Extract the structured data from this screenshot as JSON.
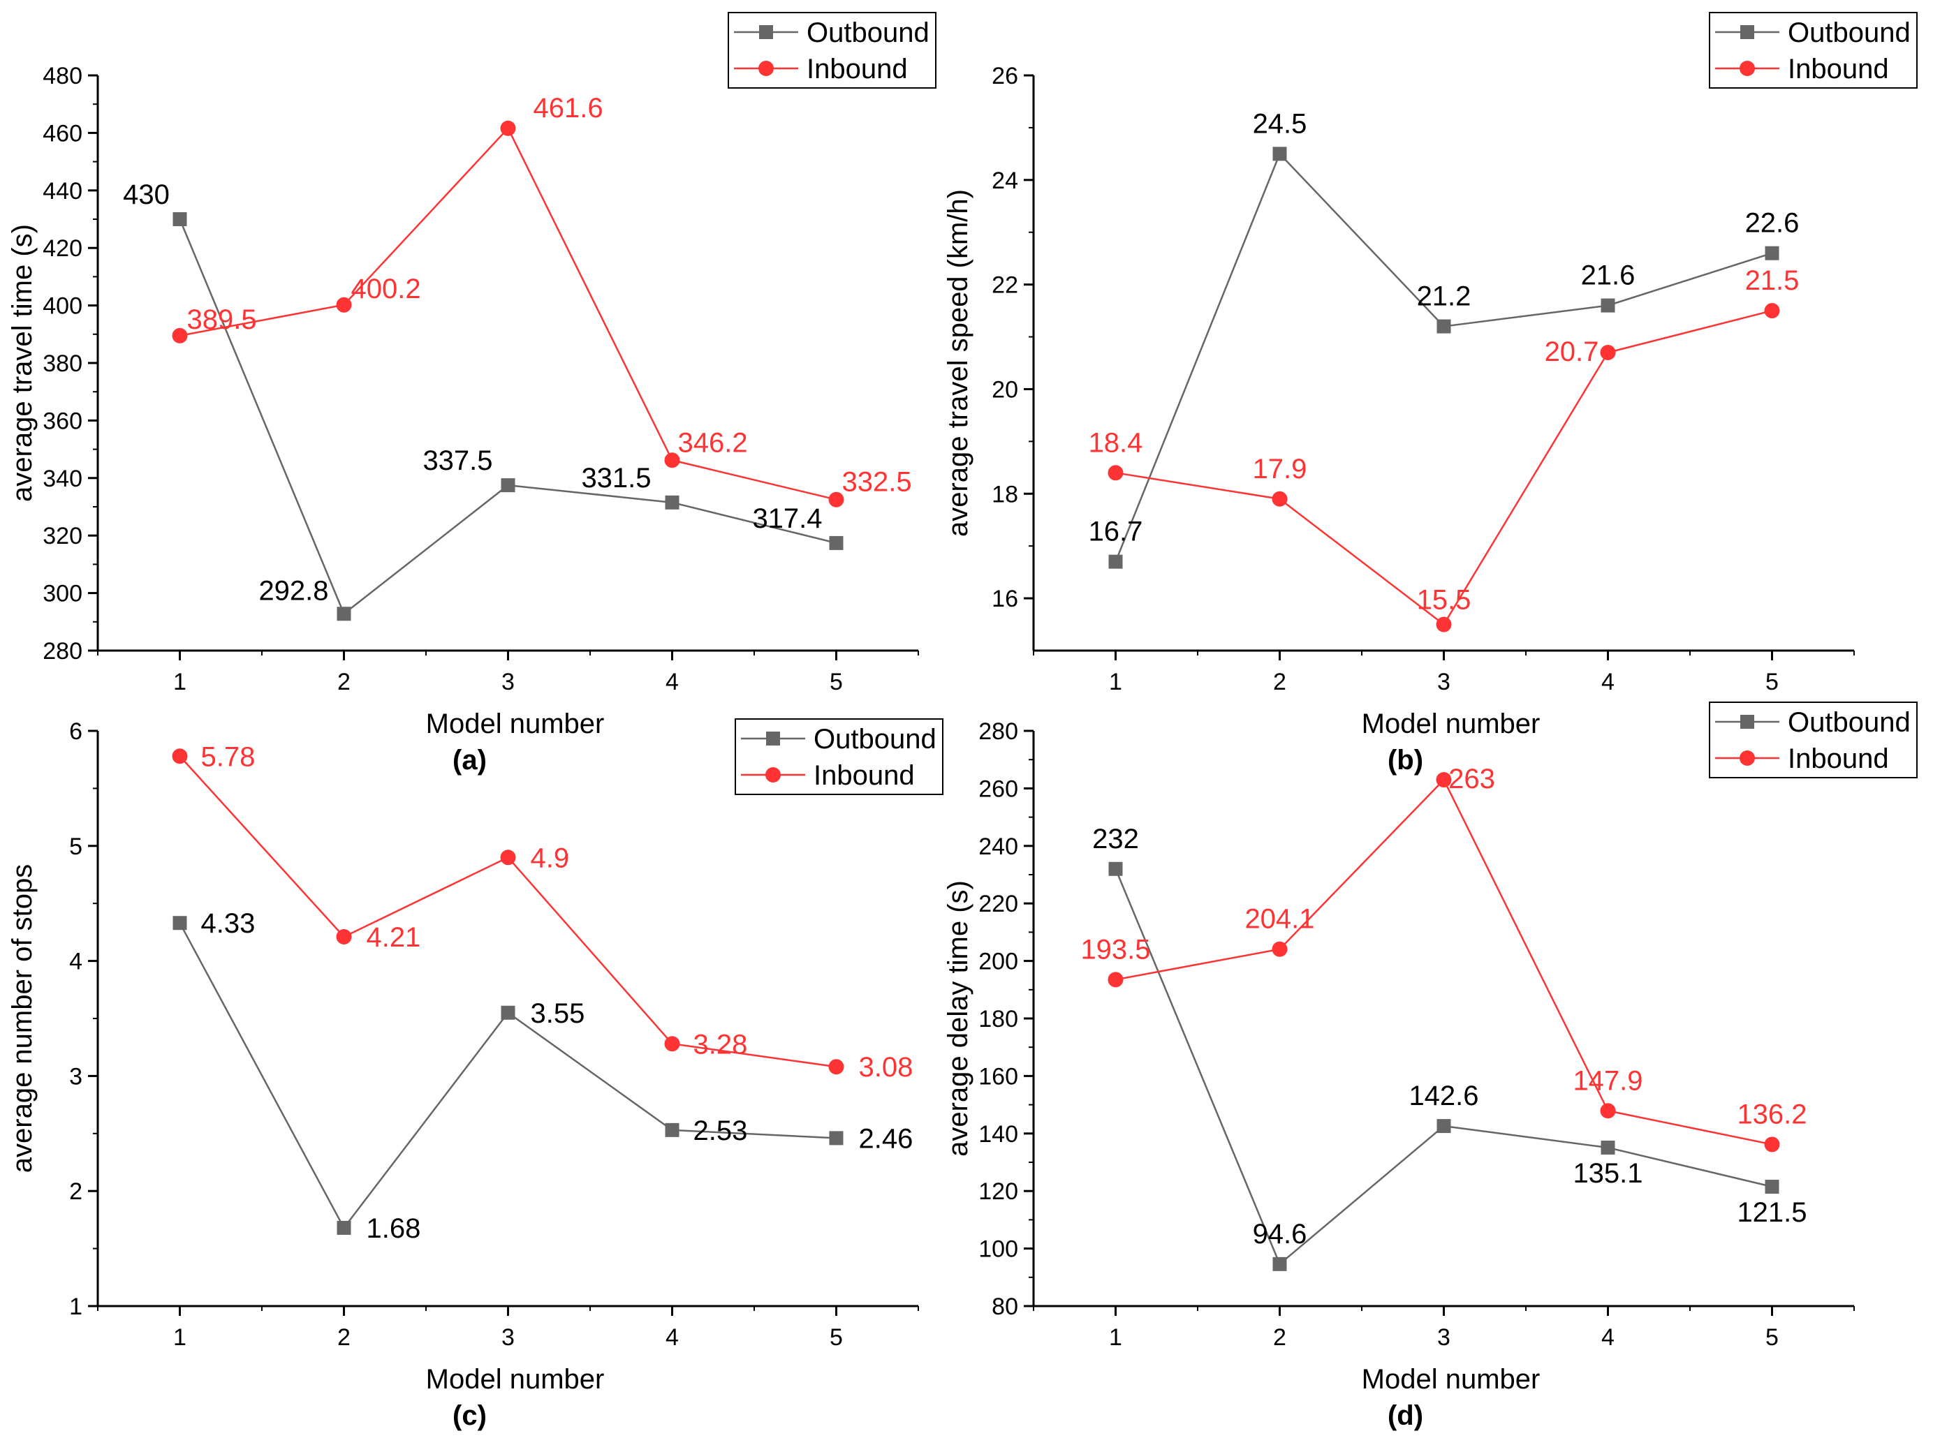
{
  "legend": {
    "outbound_label": "Outbound",
    "inbound_label": "Inbound"
  },
  "colors": {
    "outbound": "#666666",
    "inbound": "#ff3333",
    "outbound_label": "#000000",
    "inbound_label": "#ff3333"
  },
  "chart_data": [
    {
      "type": "line",
      "panel": "(a)",
      "xlabel": "Model number",
      "ylabel": "average travel time (s)",
      "x": [
        1,
        2,
        3,
        4,
        5
      ],
      "xticks": [
        "1",
        "2",
        "3",
        "4",
        "5"
      ],
      "xlim": [
        0.5,
        5.5
      ],
      "ylim": [
        280,
        480
      ],
      "yticks": [
        "280",
        "300",
        "320",
        "340",
        "360",
        "380",
        "400",
        "420",
        "440",
        "460",
        "480"
      ],
      "legend_position": "top-right",
      "series": [
        {
          "name": "Outbound",
          "marker": "square",
          "values": [
            430,
            292.8,
            337.5,
            331.5,
            317.4
          ],
          "labels": [
            "430",
            "292.8",
            "337.5",
            "331.5",
            "317.4"
          ]
        },
        {
          "name": "Inbound",
          "marker": "circle",
          "values": [
            389.5,
            400.2,
            461.6,
            346.2,
            332.5
          ],
          "labels": [
            "389.5",
            "400.2",
            "461.6",
            "346.2",
            "332.5"
          ]
        }
      ]
    },
    {
      "type": "line",
      "panel": "(b)",
      "xlabel": "Model number",
      "ylabel": "average travel speed (km/h)",
      "x": [
        1,
        2,
        3,
        4,
        5
      ],
      "xticks": [
        "1",
        "2",
        "3",
        "4",
        "5"
      ],
      "xlim": [
        0.5,
        5.5
      ],
      "ylim": [
        15,
        26
      ],
      "yticks": [
        "16",
        "18",
        "20",
        "22",
        "24",
        "26"
      ],
      "legend_position": "top-right",
      "series": [
        {
          "name": "Outbound",
          "marker": "square",
          "values": [
            16.7,
            24.5,
            21.2,
            21.6,
            22.6
          ],
          "labels": [
            "16.7",
            "24.5",
            "21.2",
            "21.6",
            "22.6"
          ]
        },
        {
          "name": "Inbound",
          "marker": "circle",
          "values": [
            18.4,
            17.9,
            15.5,
            20.7,
            21.5
          ],
          "labels": [
            "18.4",
            "17.9",
            "15.5",
            "20.7",
            "21.5"
          ]
        }
      ]
    },
    {
      "type": "line",
      "panel": "(c)",
      "xlabel": "Model number",
      "ylabel": "average number of stops",
      "x": [
        1,
        2,
        3,
        4,
        5
      ],
      "xticks": [
        "1",
        "2",
        "3",
        "4",
        "5"
      ],
      "xlim": [
        0.5,
        5.5
      ],
      "ylim": [
        1,
        6
      ],
      "yticks": [
        "1",
        "2",
        "3",
        "4",
        "5",
        "6"
      ],
      "legend_position": "top-right",
      "series": [
        {
          "name": "Outbound",
          "marker": "square",
          "values": [
            4.33,
            1.68,
            3.55,
            2.53,
            2.46
          ],
          "labels": [
            "4.33",
            "1.68",
            "3.55",
            "2.53",
            "2.46"
          ]
        },
        {
          "name": "Inbound",
          "marker": "circle",
          "values": [
            5.78,
            4.21,
            4.9,
            3.28,
            3.08
          ],
          "labels": [
            "5.78",
            "4.21",
            "4.9",
            "3.28",
            "3.08"
          ]
        }
      ]
    },
    {
      "type": "line",
      "panel": "(d)",
      "xlabel": "Model number",
      "ylabel": "average delay time (s)",
      "x": [
        1,
        2,
        3,
        4,
        5
      ],
      "xticks": [
        "1",
        "2",
        "3",
        "4",
        "5"
      ],
      "xlim": [
        0.5,
        5.5
      ],
      "ylim": [
        80,
        280
      ],
      "yticks": [
        "80",
        "100",
        "120",
        "140",
        "160",
        "180",
        "200",
        "220",
        "240",
        "260",
        "280"
      ],
      "legend_position": "top-right",
      "series": [
        {
          "name": "Outbound",
          "marker": "square",
          "values": [
            232,
            94.6,
            142.6,
            135.1,
            121.5
          ],
          "labels": [
            "232",
            "94.6",
            "142.6",
            "135.1",
            "121.5"
          ]
        },
        {
          "name": "Inbound",
          "marker": "circle",
          "values": [
            193.5,
            204.1,
            263,
            147.9,
            136.2
          ],
          "labels": [
            "193.5",
            "204.1",
            "263",
            "147.9",
            "136.2"
          ]
        }
      ]
    }
  ]
}
